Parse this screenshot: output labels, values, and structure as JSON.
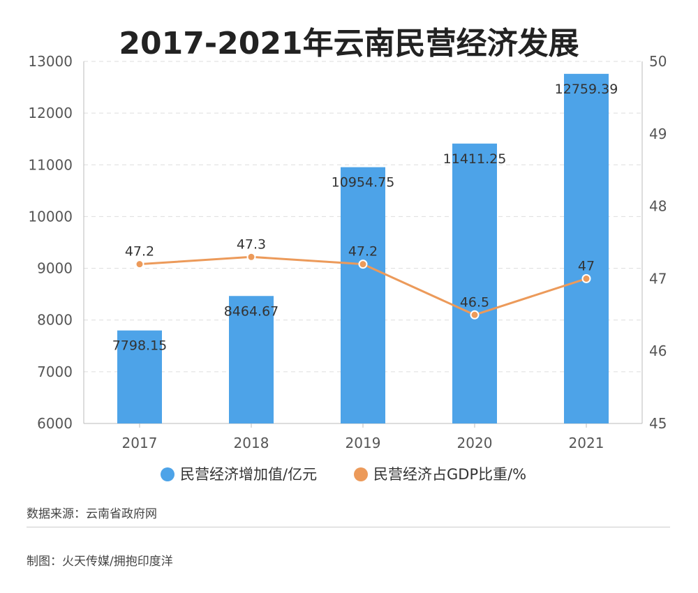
{
  "chart_data": {
    "type": "bar",
    "title": "2017-2021年云南民营经济发展",
    "categories": [
      "2017",
      "2018",
      "2019",
      "2020",
      "2021"
    ],
    "series": [
      {
        "name": "民营经济增加值/亿元",
        "type": "bar",
        "axis": "left",
        "color": "#4da3e8",
        "values": [
          7798.15,
          8464.67,
          10954.75,
          11411.25,
          12759.39
        ],
        "labels": [
          "7798.15",
          "8464.67",
          "10954.75",
          "11411.25",
          "12759.39"
        ]
      },
      {
        "name": "民营经济占GDP比重/%",
        "type": "line",
        "axis": "right",
        "color": "#ec9a5a",
        "values": [
          47.2,
          47.3,
          47.2,
          46.5,
          47.0
        ],
        "labels": [
          "47.2",
          "47.3",
          "47.2",
          "46.5",
          "47"
        ]
      }
    ],
    "left_axis": {
      "ylim": [
        6000,
        13000
      ],
      "ticks": [
        "6000",
        "7000",
        "8000",
        "9000",
        "10000",
        "11000",
        "12000",
        "13000"
      ]
    },
    "right_axis": {
      "ylim": [
        45,
        50
      ],
      "ticks": [
        "45",
        "46",
        "47",
        "48",
        "49",
        "50"
      ]
    },
    "grid": true,
    "legend_position": "bottom"
  },
  "footer": {
    "source": "数据来源：云南省政府网",
    "credit": "制图：火天传媒/拥抱印度洋"
  }
}
